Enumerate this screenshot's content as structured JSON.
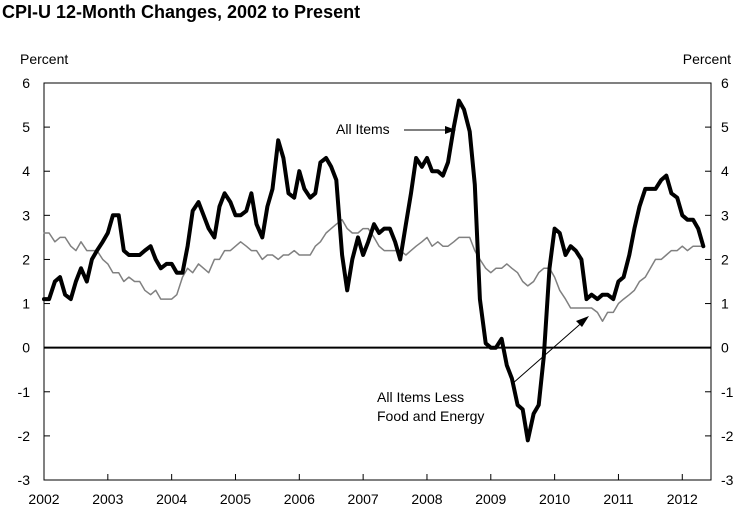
{
  "chart_data": {
    "type": "line",
    "title": "CPI-U 12-Month Changes, 2002 to Present",
    "ylabel_left": "Percent",
    "ylabel_right": "Percent",
    "ylim": [
      -3,
      6
    ],
    "y_ticks": [
      "6",
      "5",
      "4",
      "3",
      "2",
      "1",
      "0",
      "-1",
      "-2",
      "-3"
    ],
    "xlim": [
      2002,
      2012.45
    ],
    "x_ticks": [
      "2002",
      "2003",
      "2004",
      "2005",
      "2006",
      "2007",
      "2008",
      "2009",
      "2010",
      "2011",
      "2012"
    ],
    "annotations": {
      "all_items": "All Items",
      "core_line1": "All Items Less",
      "core_line2": "Food and Energy"
    },
    "series": [
      {
        "name": "All Items",
        "x": [
          2002.0,
          2002.08,
          2002.17,
          2002.25,
          2002.33,
          2002.42,
          2002.5,
          2002.58,
          2002.67,
          2002.75,
          2002.83,
          2002.92,
          2003.0,
          2003.08,
          2003.17,
          2003.25,
          2003.33,
          2003.42,
          2003.5,
          2003.58,
          2003.67,
          2003.75,
          2003.83,
          2003.92,
          2004.0,
          2004.08,
          2004.17,
          2004.25,
          2004.33,
          2004.42,
          2004.5,
          2004.58,
          2004.67,
          2004.75,
          2004.83,
          2004.92,
          2005.0,
          2005.08,
          2005.17,
          2005.25,
          2005.33,
          2005.42,
          2005.5,
          2005.58,
          2005.67,
          2005.75,
          2005.83,
          2005.92,
          2006.0,
          2006.08,
          2006.17,
          2006.25,
          2006.33,
          2006.42,
          2006.5,
          2006.58,
          2006.67,
          2006.75,
          2006.83,
          2006.92,
          2007.0,
          2007.08,
          2007.17,
          2007.25,
          2007.33,
          2007.42,
          2007.5,
          2007.58,
          2007.67,
          2007.75,
          2007.83,
          2007.92,
          2008.0,
          2008.08,
          2008.17,
          2008.25,
          2008.33,
          2008.42,
          2008.5,
          2008.58,
          2008.67,
          2008.75,
          2008.83,
          2008.92,
          2009.0,
          2009.08,
          2009.17,
          2009.25,
          2009.33,
          2009.42,
          2009.5,
          2009.58,
          2009.67,
          2009.75,
          2009.83,
          2009.92,
          2010.0,
          2010.08,
          2010.17,
          2010.25,
          2010.33,
          2010.42,
          2010.5,
          2010.58,
          2010.67,
          2010.75,
          2010.83,
          2010.92,
          2011.0,
          2011.08,
          2011.17,
          2011.25,
          2011.33,
          2011.42,
          2011.5,
          2011.58,
          2011.67,
          2011.75,
          2011.83,
          2011.92,
          2012.0,
          2012.08,
          2012.17,
          2012.25,
          2012.33
        ],
        "values": [
          1.1,
          1.1,
          1.5,
          1.6,
          1.2,
          1.1,
          1.5,
          1.8,
          1.5,
          2.0,
          2.2,
          2.4,
          2.6,
          3.0,
          3.0,
          2.2,
          2.1,
          2.1,
          2.1,
          2.2,
          2.3,
          2.0,
          1.8,
          1.9,
          1.9,
          1.7,
          1.7,
          2.3,
          3.1,
          3.3,
          3.0,
          2.7,
          2.5,
          3.2,
          3.5,
          3.3,
          3.0,
          3.0,
          3.1,
          3.5,
          2.8,
          2.5,
          3.2,
          3.6,
          4.7,
          4.3,
          3.5,
          3.4,
          4.0,
          3.6,
          3.4,
          3.5,
          4.2,
          4.3,
          4.1,
          3.8,
          2.1,
          1.3,
          2.0,
          2.5,
          2.1,
          2.4,
          2.8,
          2.6,
          2.7,
          2.7,
          2.4,
          2.0,
          2.8,
          3.5,
          4.3,
          4.1,
          4.3,
          4.0,
          4.0,
          3.9,
          4.2,
          5.0,
          5.6,
          5.4,
          4.9,
          3.7,
          1.1,
          0.1,
          0.0,
          0.0,
          0.2,
          -0.4,
          -0.7,
          -1.3,
          -1.4,
          -2.1,
          -1.5,
          -1.3,
          -0.2,
          1.8,
          2.7,
          2.6,
          2.1,
          2.3,
          2.2,
          2.0,
          1.1,
          1.2,
          1.1,
          1.2,
          1.2,
          1.1,
          1.5,
          1.6,
          2.1,
          2.7,
          3.2,
          3.6,
          3.6,
          3.6,
          3.8,
          3.9,
          3.5,
          3.4,
          3.0,
          2.9,
          2.9,
          2.7,
          2.3
        ]
      },
      {
        "name": "All Items Less Food and Energy",
        "x": [
          2002.0,
          2002.08,
          2002.17,
          2002.25,
          2002.33,
          2002.42,
          2002.5,
          2002.58,
          2002.67,
          2002.75,
          2002.83,
          2002.92,
          2003.0,
          2003.08,
          2003.17,
          2003.25,
          2003.33,
          2003.42,
          2003.5,
          2003.58,
          2003.67,
          2003.75,
          2003.83,
          2003.92,
          2004.0,
          2004.08,
          2004.17,
          2004.25,
          2004.33,
          2004.42,
          2004.5,
          2004.58,
          2004.67,
          2004.75,
          2004.83,
          2004.92,
          2005.0,
          2005.08,
          2005.17,
          2005.25,
          2005.33,
          2005.42,
          2005.5,
          2005.58,
          2005.67,
          2005.75,
          2005.83,
          2005.92,
          2006.0,
          2006.08,
          2006.17,
          2006.25,
          2006.33,
          2006.42,
          2006.5,
          2006.58,
          2006.67,
          2006.75,
          2006.83,
          2006.92,
          2007.0,
          2007.08,
          2007.17,
          2007.25,
          2007.33,
          2007.42,
          2007.5,
          2007.58,
          2007.67,
          2007.75,
          2007.83,
          2007.92,
          2008.0,
          2008.08,
          2008.17,
          2008.25,
          2008.33,
          2008.42,
          2008.5,
          2008.58,
          2008.67,
          2008.75,
          2008.83,
          2008.92,
          2009.0,
          2009.08,
          2009.17,
          2009.25,
          2009.33,
          2009.42,
          2009.5,
          2009.58,
          2009.67,
          2009.75,
          2009.83,
          2009.92,
          2010.0,
          2010.08,
          2010.17,
          2010.25,
          2010.33,
          2010.42,
          2010.5,
          2010.58,
          2010.67,
          2010.75,
          2010.83,
          2010.92,
          2011.0,
          2011.08,
          2011.17,
          2011.25,
          2011.33,
          2011.42,
          2011.5,
          2011.58,
          2011.67,
          2011.75,
          2011.83,
          2011.92,
          2012.0,
          2012.08,
          2012.17,
          2012.25,
          2012.33
        ],
        "values": [
          2.6,
          2.6,
          2.4,
          2.5,
          2.5,
          2.3,
          2.2,
          2.4,
          2.2,
          2.2,
          2.2,
          2.0,
          1.9,
          1.7,
          1.7,
          1.5,
          1.6,
          1.5,
          1.5,
          1.3,
          1.2,
          1.3,
          1.1,
          1.1,
          1.1,
          1.2,
          1.6,
          1.8,
          1.7,
          1.9,
          1.8,
          1.7,
          2.0,
          2.0,
          2.2,
          2.2,
          2.3,
          2.4,
          2.3,
          2.2,
          2.2,
          2.0,
          2.1,
          2.1,
          2.0,
          2.1,
          2.1,
          2.2,
          2.1,
          2.1,
          2.1,
          2.3,
          2.4,
          2.6,
          2.7,
          2.8,
          2.9,
          2.7,
          2.6,
          2.6,
          2.7,
          2.7,
          2.5,
          2.3,
          2.2,
          2.2,
          2.2,
          2.2,
          2.1,
          2.2,
          2.3,
          2.4,
          2.5,
          2.3,
          2.4,
          2.3,
          2.3,
          2.4,
          2.5,
          2.5,
          2.5,
          2.2,
          2.0,
          1.8,
          1.7,
          1.8,
          1.8,
          1.9,
          1.8,
          1.7,
          1.5,
          1.4,
          1.5,
          1.7,
          1.8,
          1.8,
          1.6,
          1.3,
          1.1,
          0.9,
          0.9,
          0.9,
          0.9,
          0.9,
          0.8,
          0.6,
          0.8,
          0.8,
          1.0,
          1.1,
          1.2,
          1.3,
          1.5,
          1.6,
          1.8,
          2.0,
          2.0,
          2.1,
          2.2,
          2.2,
          2.3,
          2.2,
          2.3,
          2.3,
          2.3
        ]
      }
    ]
  }
}
